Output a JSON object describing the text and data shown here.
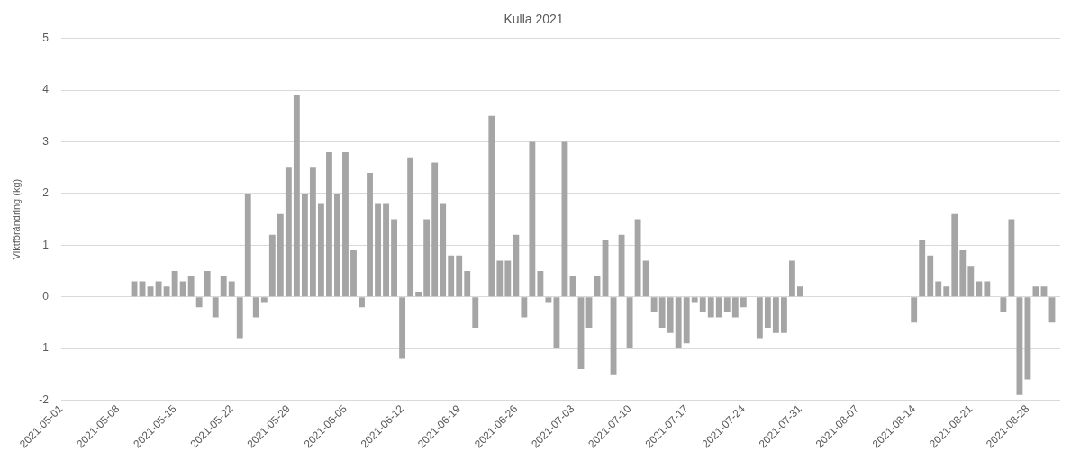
{
  "chart_data": {
    "type": "bar",
    "title": "Kulla 2021",
    "ylabel": "Viktförändring (kg)",
    "x": [
      "2021-05-10",
      "2021-05-11",
      "2021-05-12",
      "2021-05-13",
      "2021-05-14",
      "2021-05-15",
      "2021-05-16",
      "2021-05-17",
      "2021-05-18",
      "2021-05-19",
      "2021-05-20",
      "2021-05-21",
      "2021-05-22",
      "2021-05-23",
      "2021-05-24",
      "2021-05-25",
      "2021-05-26",
      "2021-05-27",
      "2021-05-28",
      "2021-05-29",
      "2021-05-30",
      "2021-05-31",
      "2021-06-01",
      "2021-06-02",
      "2021-06-03",
      "2021-06-04",
      "2021-06-05",
      "2021-06-06",
      "2021-06-07",
      "2021-06-08",
      "2021-06-09",
      "2021-06-10",
      "2021-06-11",
      "2021-06-12",
      "2021-06-13",
      "2021-06-14",
      "2021-06-15",
      "2021-06-16",
      "2021-06-17",
      "2021-06-18",
      "2021-06-19",
      "2021-06-20",
      "2021-06-21",
      "2021-06-23",
      "2021-06-24",
      "2021-06-25",
      "2021-06-26",
      "2021-06-27",
      "2021-06-28",
      "2021-06-29",
      "2021-06-30",
      "2021-07-01",
      "2021-07-02",
      "2021-07-03",
      "2021-07-04",
      "2021-07-05",
      "2021-07-06",
      "2021-07-07",
      "2021-07-08",
      "2021-07-09",
      "2021-07-10",
      "2021-07-11",
      "2021-07-12",
      "2021-07-13",
      "2021-07-14",
      "2021-07-15",
      "2021-07-16",
      "2021-07-17",
      "2021-07-18",
      "2021-07-19",
      "2021-07-20",
      "2021-07-21",
      "2021-07-22",
      "2021-07-23",
      "2021-07-24",
      "2021-07-26",
      "2021-07-27",
      "2021-07-28",
      "2021-07-29",
      "2021-07-30",
      "2021-07-31",
      "2021-08-14",
      "2021-08-15",
      "2021-08-16",
      "2021-08-17",
      "2021-08-18",
      "2021-08-19",
      "2021-08-20",
      "2021-08-21",
      "2021-08-22",
      "2021-08-23",
      "2021-08-25",
      "2021-08-26",
      "2021-08-27",
      "2021-08-28",
      "2021-08-29",
      "2021-08-30",
      "2021-08-31"
    ],
    "values": [
      0.3,
      0.3,
      0.2,
      0.3,
      0.2,
      0.5,
      0.3,
      0.4,
      -0.2,
      0.5,
      -0.4,
      0.4,
      0.3,
      -0.8,
      2.0,
      -0.4,
      -0.1,
      1.2,
      1.6,
      2.5,
      3.9,
      2.0,
      2.5,
      1.8,
      2.8,
      2.0,
      2.8,
      0.9,
      -0.2,
      2.4,
      1.8,
      1.8,
      1.5,
      -1.2,
      2.7,
      0.1,
      1.5,
      2.6,
      1.8,
      0.8,
      0.8,
      0.5,
      -0.6,
      3.5,
      0.7,
      0.7,
      1.2,
      -0.4,
      3.0,
      0.5,
      -0.1,
      -1.0,
      3.0,
      0.4,
      -1.4,
      -0.6,
      0.4,
      1.1,
      -1.5,
      1.2,
      -1.0,
      1.5,
      0.7,
      -0.3,
      -0.6,
      -0.7,
      -1.0,
      -0.9,
      -0.1,
      -0.3,
      -0.4,
      -0.4,
      -0.3,
      -0.4,
      -0.2,
      -0.8,
      -0.6,
      -0.7,
      -0.7,
      0.7,
      0.2,
      -0.5,
      1.1,
      0.8,
      0.3,
      0.2,
      1.6,
      0.9,
      0.6,
      0.3,
      0.3,
      -0.3,
      1.5,
      -1.9,
      -1.6,
      0.2,
      0.2,
      -0.5
    ],
    "color": "#a5a5a5",
    "xlim": [
      "2021-05-01",
      "2021-09-01"
    ],
    "xticks": [
      "2021-05-01",
      "2021-05-08",
      "2021-05-15",
      "2021-05-22",
      "2021-05-29",
      "2021-06-05",
      "2021-06-12",
      "2021-06-19",
      "2021-06-26",
      "2021-07-03",
      "2021-07-10",
      "2021-07-17",
      "2021-07-24",
      "2021-07-31",
      "2021-08-07",
      "2021-08-14",
      "2021-08-21",
      "2021-08-28"
    ],
    "ylim": [
      -2,
      5
    ],
    "yticks": [
      -2,
      -1,
      0,
      1,
      2,
      3,
      4,
      5
    ],
    "grid": "y",
    "legend": false
  }
}
